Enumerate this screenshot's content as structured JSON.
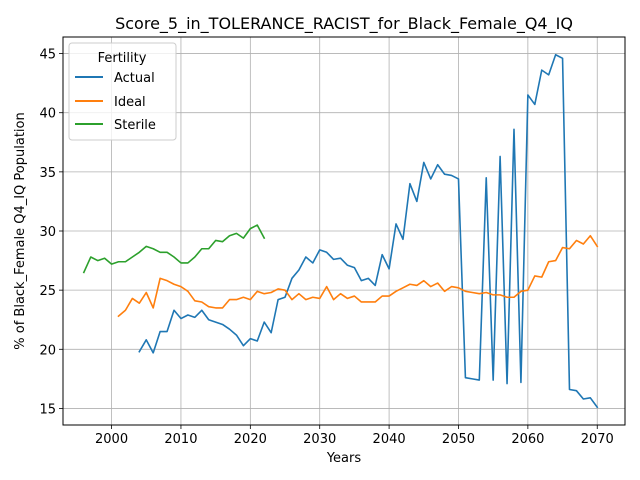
{
  "chart_data": {
    "type": "line",
    "title": "Score_5_in_TOLERANCE_RACIST_for_Black_Female_Q4_IQ",
    "xlabel": "Years",
    "ylabel": "% of Black_Female Q4_IQ Population",
    "xlim": [
      1993,
      2074
    ],
    "ylim": [
      13.6,
      46.4
    ],
    "xticks": [
      2000,
      2010,
      2020,
      2030,
      2040,
      2050,
      2060,
      2070
    ],
    "yticks": [
      15,
      20,
      25,
      30,
      35,
      40,
      45
    ],
    "grid": true,
    "legend": {
      "title": "Fertility",
      "placement": "top-left"
    },
    "series": [
      {
        "name": "Actual",
        "color": "#1f77b4",
        "x": [
          2004,
          2005,
          2006,
          2007,
          2008,
          2009,
          2010,
          2011,
          2012,
          2013,
          2014,
          2015,
          2016,
          2017,
          2018,
          2019,
          2020,
          2021,
          2022,
          2023,
          2024,
          2025,
          2026,
          2027,
          2028,
          2029,
          2030,
          2031,
          2032,
          2033,
          2034,
          2035,
          2036,
          2037,
          2038,
          2039,
          2040,
          2041,
          2042,
          2043,
          2044,
          2045,
          2046,
          2047,
          2048,
          2049,
          2050,
          2051,
          2052,
          2053,
          2054,
          2055,
          2056,
          2057,
          2058,
          2059,
          2060,
          2061,
          2062,
          2063,
          2064,
          2065,
          2066,
          2067,
          2068,
          2069,
          2070
        ],
        "y": [
          19.8,
          20.8,
          19.7,
          21.5,
          21.5,
          23.3,
          22.6,
          22.9,
          22.7,
          23.3,
          22.5,
          22.3,
          22.1,
          21.7,
          21.2,
          20.3,
          20.9,
          20.7,
          22.3,
          21.4,
          24.2,
          24.4,
          26.0,
          26.7,
          27.8,
          27.3,
          28.4,
          28.2,
          27.6,
          27.7,
          27.1,
          26.9,
          25.8,
          26.0,
          25.4,
          28.0,
          26.8,
          30.6,
          29.3,
          34.0,
          32.5,
          35.8,
          34.4,
          35.6,
          34.8,
          34.7,
          34.4,
          17.6,
          17.5,
          17.4,
          34.5,
          17.4,
          36.3,
          17.1,
          38.6,
          17.2,
          41.5,
          40.7,
          43.6,
          43.2,
          44.9,
          44.6,
          16.6,
          16.5,
          15.8,
          15.9,
          15.1
        ]
      },
      {
        "name": "Ideal",
        "color": "#ff7f0e",
        "x": [
          2001,
          2002,
          2003,
          2004,
          2005,
          2006,
          2007,
          2008,
          2009,
          2010,
          2011,
          2012,
          2013,
          2014,
          2015,
          2016,
          2017,
          2018,
          2019,
          2020,
          2021,
          2022,
          2023,
          2024,
          2025,
          2026,
          2027,
          2028,
          2029,
          2030,
          2031,
          2032,
          2033,
          2034,
          2035,
          2036,
          2037,
          2038,
          2039,
          2040,
          2041,
          2042,
          2043,
          2044,
          2045,
          2046,
          2047,
          2048,
          2049,
          2050,
          2051,
          2052,
          2053,
          2054,
          2055,
          2056,
          2057,
          2058,
          2059,
          2060,
          2061,
          2062,
          2063,
          2064,
          2065,
          2066,
          2067,
          2068,
          2069,
          2070
        ],
        "y": [
          22.8,
          23.3,
          24.3,
          23.9,
          24.8,
          23.5,
          26.0,
          25.8,
          25.5,
          25.3,
          24.9,
          24.1,
          24.0,
          23.6,
          23.5,
          23.5,
          24.2,
          24.2,
          24.4,
          24.2,
          24.9,
          24.7,
          24.8,
          25.1,
          25.0,
          24.2,
          24.7,
          24.2,
          24.4,
          24.3,
          25.3,
          24.2,
          24.7,
          24.3,
          24.5,
          24.0,
          24.0,
          24.0,
          24.5,
          24.5,
          24.9,
          25.2,
          25.5,
          25.4,
          25.8,
          25.3,
          25.6,
          24.9,
          25.3,
          25.2,
          24.9,
          24.8,
          24.7,
          24.8,
          24.6,
          24.6,
          24.4,
          24.4,
          24.9,
          25.0,
          26.2,
          26.1,
          27.4,
          27.5,
          28.6,
          28.5,
          29.2,
          28.9,
          29.6,
          28.7
        ]
      },
      {
        "name": "Sterile",
        "color": "#2ca02c",
        "x": [
          1996,
          1997,
          1998,
          1999,
          2000,
          2001,
          2002,
          2003,
          2004,
          2005,
          2006,
          2007,
          2008,
          2009,
          2010,
          2011,
          2012,
          2013,
          2014,
          2015,
          2016,
          2017,
          2018,
          2019,
          2020,
          2021,
          2022
        ],
        "y": [
          26.5,
          27.8,
          27.5,
          27.7,
          27.2,
          27.4,
          27.4,
          27.8,
          28.2,
          28.7,
          28.5,
          28.2,
          28.2,
          27.8,
          27.3,
          27.3,
          27.8,
          28.5,
          28.5,
          29.2,
          29.1,
          29.6,
          29.8,
          29.4,
          30.2,
          30.5,
          29.4
        ]
      }
    ]
  }
}
